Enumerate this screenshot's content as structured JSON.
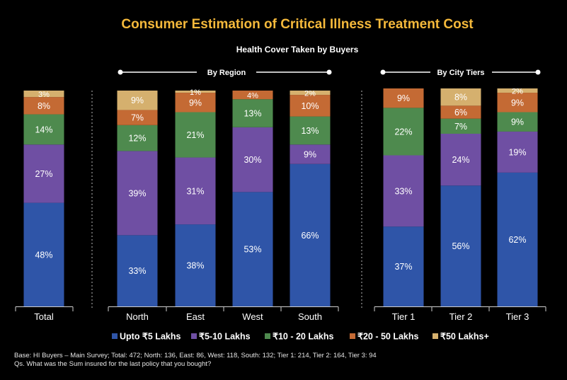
{
  "title": "Consumer Estimation of Critical Illness Treatment Cost",
  "subtitle": "Health Cover Taken by Buyers",
  "group_labels": {
    "region": "By Region",
    "city": "By City Tiers"
  },
  "colors": {
    "background": "#000000",
    "title": "#f5b93b",
    "upto5": "#2f55a8",
    "5to10": "#6f4fa3",
    "10to20": "#4e8a4e",
    "20to50": "#c46a34",
    "50plus": "#d5b06e"
  },
  "chart_data": {
    "type": "bar",
    "stacked": true,
    "unit": "%",
    "categories": [
      "Total",
      "North",
      "East",
      "West",
      "South",
      "Tier 1",
      "Tier 2",
      "Tier 3"
    ],
    "series": [
      {
        "name": "Upto ₹5 Lakhs",
        "color_key": "upto5",
        "values": [
          48,
          33,
          38,
          53,
          66,
          37,
          56,
          62
        ]
      },
      {
        "name": "₹5-10  Lakhs",
        "color_key": "5to10",
        "values": [
          27,
          39,
          31,
          30,
          9,
          33,
          24,
          19
        ]
      },
      {
        "name": "₹10 - 20  Lakhs",
        "color_key": "10to20",
        "values": [
          14,
          12,
          21,
          13,
          13,
          22,
          7,
          9
        ]
      },
      {
        "name": "₹20 - 50 Lakhs",
        "color_key": "20to50",
        "values": [
          8,
          7,
          9,
          4,
          10,
          9,
          6,
          9
        ]
      },
      {
        "name": "₹50 Lakhs+",
        "color_key": "50plus",
        "values": [
          3,
          9,
          1,
          0,
          2,
          0,
          8,
          2
        ]
      }
    ],
    "ylim": [
      0,
      100
    ],
    "legend_position": "bottom",
    "grid": false
  },
  "footer": {
    "base": "Base: HI Buyers – Main Survey; Total: 472; North: 136, East: 86, West: 118, South: 132; Tier 1: 214, Tier 2: 164, Tier 3: 94",
    "question": "Qs. What was the Sum insured for the last policy that you bought?"
  }
}
